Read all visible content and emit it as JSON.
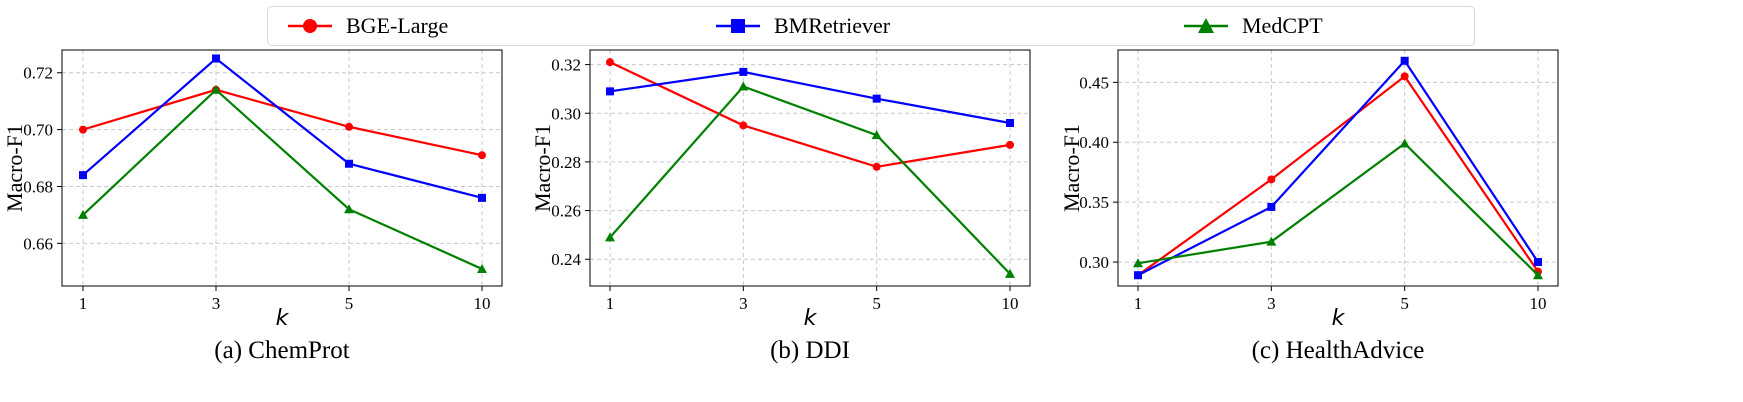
{
  "legend": [
    {
      "name": "BGE-Large",
      "color": "#ff0000",
      "marker": "circle"
    },
    {
      "name": "BMRetriever",
      "color": "#0000ff",
      "marker": "square"
    },
    {
      "name": "MedCPT",
      "color": "#008000",
      "marker": "triangle"
    }
  ],
  "chart_data": [
    {
      "type": "line",
      "title": "(a) ChemProt",
      "xlabel": "k",
      "ylabel": "Macro-F1",
      "categories": [
        "1",
        "3",
        "5",
        "10"
      ],
      "ylim": [
        0.645,
        0.728
      ],
      "yticks": [
        0.66,
        0.68,
        0.7,
        0.72
      ],
      "ytick_labels": [
        "0.66",
        "0.68",
        "0.70",
        "0.72"
      ],
      "grid": true,
      "series": [
        {
          "name": "BGE-Large",
          "values": [
            0.7,
            0.714,
            0.701,
            0.691
          ]
        },
        {
          "name": "BMRetriever",
          "values": [
            0.684,
            0.725,
            0.688,
            0.676
          ]
        },
        {
          "name": "MedCPT",
          "values": [
            0.67,
            0.714,
            0.672,
            0.651
          ]
        }
      ]
    },
    {
      "type": "line",
      "title": "(b) DDI",
      "xlabel": "k",
      "ylabel": "Macro-F1",
      "categories": [
        "1",
        "3",
        "5",
        "10"
      ],
      "ylim": [
        0.229,
        0.326
      ],
      "yticks": [
        0.24,
        0.26,
        0.28,
        0.3,
        0.32
      ],
      "ytick_labels": [
        "0.24",
        "0.26",
        "0.28",
        "0.30",
        "0.32"
      ],
      "grid": true,
      "series": [
        {
          "name": "BGE-Large",
          "values": [
            0.321,
            0.295,
            0.278,
            0.287
          ]
        },
        {
          "name": "BMRetriever",
          "values": [
            0.309,
            0.317,
            0.306,
            0.296
          ]
        },
        {
          "name": "MedCPT",
          "values": [
            0.249,
            0.311,
            0.291,
            0.234
          ]
        }
      ]
    },
    {
      "type": "line",
      "title": "(c) HealthAdvice",
      "xlabel": "k",
      "ylabel": "Macro-F1",
      "categories": [
        "1",
        "3",
        "5",
        "10"
      ],
      "ylim": [
        0.28,
        0.477
      ],
      "yticks": [
        0.3,
        0.35,
        0.4,
        0.45
      ],
      "ytick_labels": [
        "0.30",
        "0.35",
        "0.40",
        "0.45"
      ],
      "grid": true,
      "series": [
        {
          "name": "BGE-Large",
          "values": [
            0.289,
            0.369,
            0.455,
            0.292
          ]
        },
        {
          "name": "BMRetriever",
          "values": [
            0.289,
            0.346,
            0.468,
            0.3
          ]
        },
        {
          "name": "MedCPT",
          "values": [
            0.299,
            0.317,
            0.399,
            0.289
          ]
        }
      ]
    }
  ]
}
